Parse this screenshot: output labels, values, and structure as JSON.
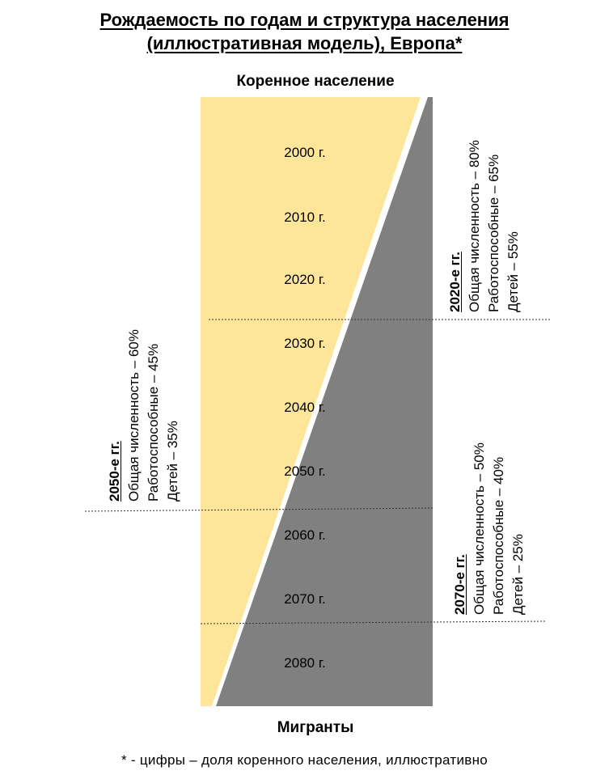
{
  "title": {
    "line1": "Рождаемость по годам и структура населения",
    "line2": "(иллюстративная модель), Европа*"
  },
  "top_label": "Коренное население",
  "bottom_label": "Мигранты",
  "footnote": "* - цифры – доля коренного населения,  иллюстративно",
  "colors": {
    "native": "#fde59a",
    "migrants": "#808080",
    "divider": "#ffffff"
  },
  "years": [
    "2000 г.",
    "2010 г.",
    "2020 г.",
    "2030 г.",
    "2040 г.",
    "2050 г.",
    "2060 г.",
    "2070 г.",
    "2080 г."
  ],
  "annotations": {
    "y2020": {
      "heading": "2020-е гг.",
      "total": "Общая численность – 80%",
      "workers": "Работоспособные – 65%",
      "children": "Детей – 55%"
    },
    "y2050": {
      "heading": "2050-е гг.",
      "total": "Общая численность – 60%",
      "workers": "Работоспособные – 45%",
      "children": "Детей – 35%"
    },
    "y2070": {
      "heading": "2070-е гг.",
      "total": "Общая численность – 50%",
      "workers": "Работоспособные – 40%",
      "children": "Детей – 25%"
    }
  }
}
